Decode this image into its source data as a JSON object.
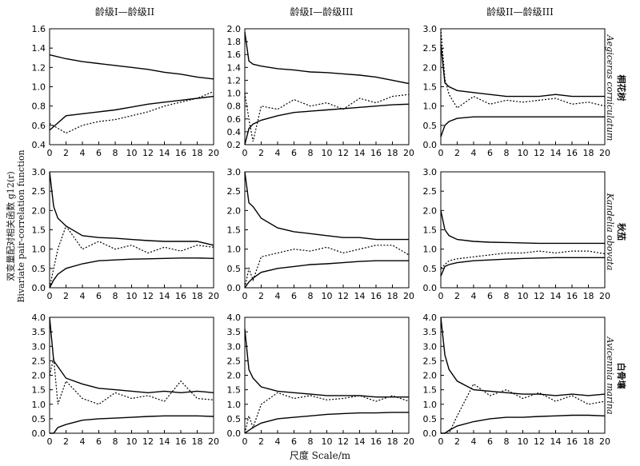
{
  "columns": [
    "龄级I—龄级II",
    "龄级I—龄级III",
    "龄级II—龄级III"
  ],
  "rows": [
    {
      "cn": "桐花树",
      "species": "Aegiceras corniculatum"
    },
    {
      "cn": "秋茄",
      "species": "Kandelia obovata"
    },
    {
      "cn": "白骨壤",
      "species": "Avicennia marina"
    }
  ],
  "ylabel_cn": "双变量配对相关函数 g12(r)",
  "ylabel_en": "Bivariate pair-correlation function",
  "xlabel": "尺度 Scale/m",
  "chart_data": [
    {
      "type": "line",
      "row": 0,
      "col": 0,
      "xlim": [
        0,
        20
      ],
      "ylim": [
        0.4,
        1.6
      ],
      "yticks": [
        0.4,
        0.6,
        0.8,
        1.0,
        1.2,
        1.4,
        1.6
      ],
      "x": [
        0,
        2,
        4,
        6,
        8,
        10,
        12,
        14,
        16,
        18,
        20
      ],
      "series": [
        {
          "style": "upper",
          "values": [
            1.33,
            1.29,
            1.26,
            1.24,
            1.22,
            1.2,
            1.18,
            1.15,
            1.13,
            1.1,
            1.08
          ]
        },
        {
          "style": "lower",
          "values": [
            0.55,
            0.7,
            0.72,
            0.74,
            0.76,
            0.79,
            0.82,
            0.84,
            0.86,
            0.88,
            0.9
          ]
        },
        {
          "style": "observed",
          "values": [
            0.62,
            0.52,
            0.6,
            0.64,
            0.66,
            0.7,
            0.74,
            0.8,
            0.84,
            0.88,
            0.95
          ]
        }
      ]
    },
    {
      "type": "line",
      "row": 0,
      "col": 1,
      "xlim": [
        0,
        20
      ],
      "ylim": [
        0.2,
        2.0
      ],
      "yticks": [
        0.2,
        0.4,
        0.6,
        0.8,
        1.0,
        1.2,
        1.4,
        1.6,
        1.8,
        2.0
      ],
      "x": [
        0,
        0.5,
        1,
        2,
        4,
        6,
        8,
        10,
        12,
        14,
        16,
        18,
        20
      ],
      "series": [
        {
          "style": "upper",
          "values": [
            1.95,
            1.5,
            1.45,
            1.42,
            1.38,
            1.36,
            1.33,
            1.32,
            1.3,
            1.28,
            1.25,
            1.2,
            1.15
          ]
        },
        {
          "style": "lower",
          "values": [
            0.2,
            0.45,
            0.52,
            0.58,
            0.65,
            0.7,
            0.72,
            0.74,
            0.76,
            0.78,
            0.8,
            0.82,
            0.83
          ]
        },
        {
          "style": "observed",
          "values": [
            1.0,
            0.6,
            0.25,
            0.8,
            0.75,
            0.9,
            0.8,
            0.85,
            0.75,
            0.92,
            0.85,
            0.95,
            0.98
          ]
        }
      ]
    },
    {
      "type": "line",
      "row": 0,
      "col": 2,
      "xlim": [
        0,
        20
      ],
      "ylim": [
        0,
        3.0
      ],
      "yticks": [
        0,
        0.5,
        1.0,
        1.5,
        2.0,
        2.5,
        3.0
      ],
      "x": [
        0,
        0.5,
        1,
        2,
        4,
        6,
        8,
        10,
        12,
        14,
        16,
        18,
        20
      ],
      "series": [
        {
          "style": "upper",
          "values": [
            2.6,
            1.6,
            1.5,
            1.4,
            1.35,
            1.3,
            1.25,
            1.25,
            1.25,
            1.3,
            1.25,
            1.25,
            1.25
          ]
        },
        {
          "style": "lower",
          "values": [
            0.2,
            0.5,
            0.6,
            0.68,
            0.72,
            0.72,
            0.72,
            0.72,
            0.72,
            0.72,
            0.72,
            0.72,
            0.72
          ]
        },
        {
          "style": "observed",
          "values": [
            3.0,
            1.7,
            1.3,
            0.95,
            1.25,
            1.05,
            1.15,
            1.1,
            1.15,
            1.2,
            1.05,
            1.1,
            1.0
          ]
        }
      ]
    },
    {
      "type": "line",
      "row": 1,
      "col": 0,
      "xlim": [
        0,
        20
      ],
      "ylim": [
        0,
        3.0
      ],
      "yticks": [
        0,
        0.5,
        1.0,
        1.5,
        2.0,
        2.5,
        3.0
      ],
      "x": [
        0,
        0.5,
        1,
        2,
        4,
        6,
        8,
        10,
        12,
        14,
        16,
        18,
        20
      ],
      "series": [
        {
          "style": "upper",
          "values": [
            3.0,
            2.1,
            1.8,
            1.6,
            1.35,
            1.3,
            1.28,
            1.25,
            1.22,
            1.2,
            1.2,
            1.2,
            1.1
          ]
        },
        {
          "style": "lower",
          "values": [
            0,
            0.2,
            0.35,
            0.5,
            0.62,
            0.7,
            0.72,
            0.74,
            0.75,
            0.76,
            0.77,
            0.77,
            0.76
          ]
        },
        {
          "style": "observed",
          "values": [
            0,
            0.5,
            1.0,
            1.6,
            1.0,
            1.2,
            1.0,
            1.1,
            0.9,
            1.05,
            0.95,
            1.1,
            1.05
          ]
        }
      ]
    },
    {
      "type": "line",
      "row": 1,
      "col": 1,
      "xlim": [
        0,
        20
      ],
      "ylim": [
        0,
        3.0
      ],
      "yticks": [
        0,
        0.5,
        1.0,
        1.5,
        2.0,
        2.5,
        3.0
      ],
      "x": [
        0,
        0.5,
        1,
        2,
        4,
        6,
        8,
        10,
        12,
        14,
        16,
        18,
        20
      ],
      "series": [
        {
          "style": "upper",
          "values": [
            3.0,
            2.2,
            2.1,
            1.8,
            1.55,
            1.45,
            1.4,
            1.35,
            1.3,
            1.3,
            1.25,
            1.25,
            1.25
          ]
        },
        {
          "style": "lower",
          "values": [
            0,
            0.15,
            0.25,
            0.4,
            0.5,
            0.55,
            0.6,
            0.62,
            0.65,
            0.68,
            0.7,
            0.7,
            0.7
          ]
        },
        {
          "style": "observed",
          "values": [
            0,
            0.5,
            0.2,
            0.8,
            0.9,
            1.0,
            0.95,
            1.05,
            0.9,
            1.0,
            1.1,
            1.1,
            0.85
          ]
        }
      ]
    },
    {
      "type": "line",
      "row": 1,
      "col": 2,
      "xlim": [
        0,
        20
      ],
      "ylim": [
        0,
        3.0
      ],
      "yticks": [
        0,
        0.5,
        1.0,
        1.5,
        2.0,
        2.5,
        3.0
      ],
      "x": [
        0,
        0.5,
        1,
        2,
        4,
        6,
        8,
        10,
        12,
        14,
        16,
        18,
        20
      ],
      "series": [
        {
          "style": "upper",
          "values": [
            2.0,
            1.5,
            1.35,
            1.25,
            1.2,
            1.18,
            1.17,
            1.16,
            1.15,
            1.15,
            1.15,
            1.15,
            1.15
          ]
        },
        {
          "style": "lower",
          "values": [
            0.3,
            0.55,
            0.6,
            0.65,
            0.7,
            0.72,
            0.74,
            0.76,
            0.77,
            0.78,
            0.78,
            0.78,
            0.78
          ]
        },
        {
          "style": "observed",
          "values": [
            0.5,
            0.6,
            0.7,
            0.75,
            0.8,
            0.85,
            0.9,
            0.9,
            0.95,
            0.9,
            0.95,
            0.95,
            0.88
          ]
        }
      ]
    },
    {
      "type": "line",
      "row": 2,
      "col": 0,
      "xlim": [
        0,
        20
      ],
      "ylim": [
        0,
        4.0
      ],
      "yticks": [
        0,
        0.5,
        1.0,
        1.5,
        2.0,
        2.5,
        3.0,
        3.5,
        4.0
      ],
      "x": [
        0,
        0.5,
        1,
        2,
        4,
        6,
        8,
        10,
        12,
        14,
        16,
        18,
        20
      ],
      "series": [
        {
          "style": "upper",
          "values": [
            4.0,
            2.5,
            2.3,
            1.9,
            1.7,
            1.55,
            1.5,
            1.45,
            1.4,
            1.45,
            1.4,
            1.45,
            1.4
          ]
        },
        {
          "style": "lower",
          "values": [
            0,
            0,
            0.2,
            0.3,
            0.45,
            0.5,
            0.52,
            0.55,
            0.58,
            0.6,
            0.6,
            0.6,
            0.58
          ]
        },
        {
          "style": "observed",
          "values": [
            2.0,
            2.6,
            1.0,
            1.8,
            1.2,
            1.0,
            1.4,
            1.2,
            1.3,
            1.1,
            1.8,
            1.2,
            1.15
          ]
        }
      ]
    },
    {
      "type": "line",
      "row": 2,
      "col": 1,
      "xlim": [
        0,
        20
      ],
      "ylim": [
        0,
        4.0
      ],
      "yticks": [
        0,
        0.5,
        1.0,
        1.5,
        2.0,
        2.5,
        3.0,
        3.5,
        4.0
      ],
      "x": [
        0,
        0.5,
        1,
        2,
        4,
        6,
        8,
        10,
        12,
        14,
        16,
        18,
        20
      ],
      "series": [
        {
          "style": "upper",
          "values": [
            3.6,
            2.2,
            1.9,
            1.6,
            1.45,
            1.4,
            1.35,
            1.3,
            1.3,
            1.3,
            1.25,
            1.25,
            1.25
          ]
        },
        {
          "style": "lower",
          "values": [
            0,
            0.1,
            0.2,
            0.35,
            0.5,
            0.55,
            0.6,
            0.65,
            0.68,
            0.7,
            0.7,
            0.72,
            0.72
          ]
        },
        {
          "style": "observed",
          "values": [
            0,
            0.6,
            0.2,
            1.0,
            1.4,
            1.2,
            1.3,
            1.15,
            1.2,
            1.3,
            1.1,
            1.3,
            1.1
          ]
        }
      ]
    },
    {
      "type": "line",
      "row": 2,
      "col": 2,
      "xlim": [
        0,
        20
      ],
      "ylim": [
        0,
        4.0
      ],
      "yticks": [
        0,
        0.5,
        1.0,
        1.5,
        2.0,
        2.5,
        3.0,
        3.5,
        4.0
      ],
      "x": [
        0,
        0.5,
        1,
        2,
        4,
        6,
        8,
        10,
        12,
        14,
        16,
        18,
        20
      ],
      "series": [
        {
          "style": "upper",
          "values": [
            4.0,
            2.7,
            2.2,
            1.8,
            1.5,
            1.45,
            1.4,
            1.35,
            1.35,
            1.3,
            1.35,
            1.3,
            1.35
          ]
        },
        {
          "style": "lower",
          "values": [
            0,
            0,
            0.1,
            0.25,
            0.4,
            0.5,
            0.55,
            0.55,
            0.58,
            0.6,
            0.62,
            0.62,
            0.6
          ]
        },
        {
          "style": "observed",
          "values": [
            0,
            0,
            0,
            0.6,
            1.7,
            1.3,
            1.5,
            1.2,
            1.4,
            1.1,
            1.3,
            1.0,
            1.1
          ]
        }
      ]
    }
  ]
}
